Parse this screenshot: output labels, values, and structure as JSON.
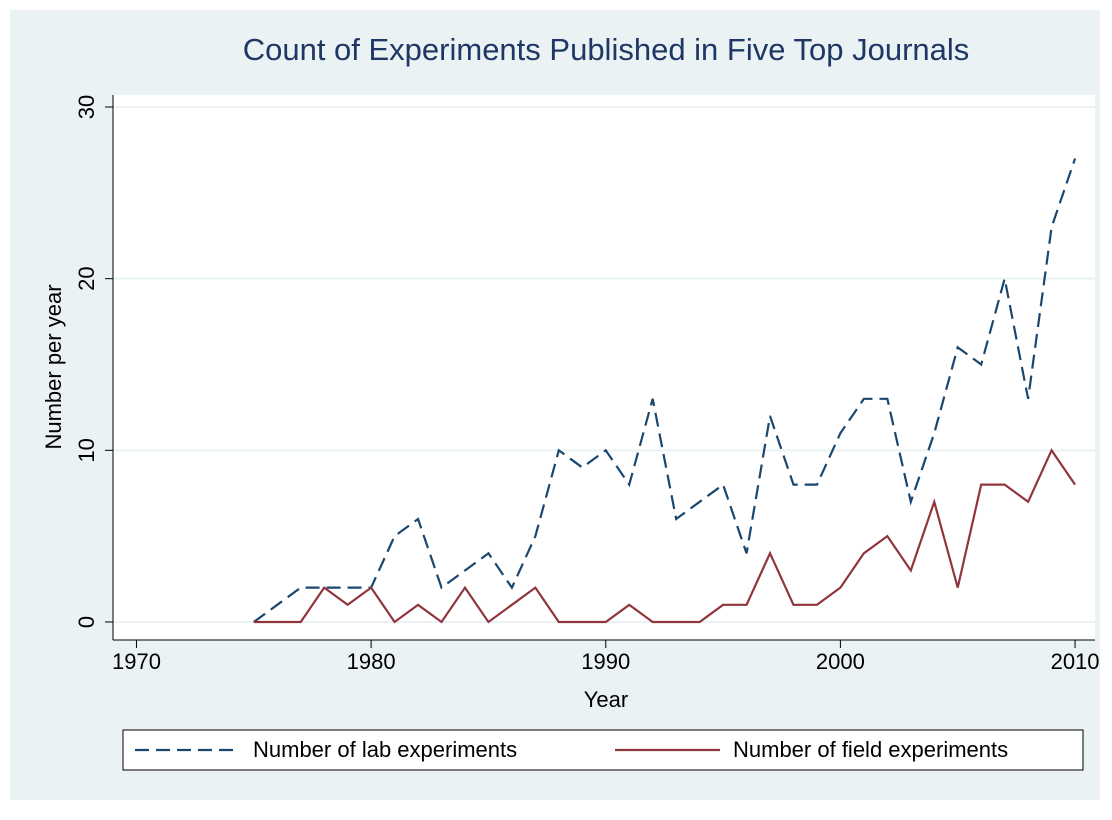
{
  "chart_data": {
    "type": "line",
    "title": "Count of Experiments Published in Five Top Journals",
    "x_label": "Year",
    "y_label": "Number per year",
    "x": [
      1975,
      1976,
      1977,
      1978,
      1979,
      1980,
      1981,
      1982,
      1983,
      1984,
      1985,
      1986,
      1987,
      1988,
      1989,
      1990,
      1991,
      1992,
      1993,
      1994,
      1995,
      1996,
      1997,
      1998,
      1999,
      2000,
      2001,
      2002,
      2003,
      2004,
      2005,
      2006,
      2007,
      2008,
      2009,
      2010
    ],
    "series": [
      {
        "name": "Number of lab experiments",
        "color": "#1a476f",
        "dash": true,
        "values": [
          0,
          1,
          2,
          2,
          2,
          2,
          5,
          6,
          2,
          3,
          4,
          2,
          5,
          10,
          9,
          10,
          8,
          13,
          6,
          7,
          8,
          4,
          12,
          8,
          8,
          11,
          13,
          13,
          7,
          11,
          16,
          15,
          20,
          13,
          23,
          27
        ]
      },
      {
        "name": "Number of field experiments",
        "color": "#90353b",
        "dash": false,
        "values": [
          0,
          0,
          0,
          2,
          1,
          2,
          0,
          1,
          0,
          2,
          0,
          1,
          2,
          0,
          0,
          0,
          1,
          0,
          0,
          0,
          1,
          1,
          4,
          1,
          1,
          2,
          4,
          5,
          3,
          7,
          2,
          8,
          8,
          7,
          10,
          8
        ]
      }
    ],
    "xlim": [
      1969,
      2010.85
    ],
    "xticks": [
      1970,
      1980,
      1990,
      2000,
      2010
    ],
    "ylim": [
      -1.05,
      30.7
    ],
    "yticks": [
      0,
      10,
      20,
      30
    ],
    "grid": true,
    "legend": "bottom"
  }
}
